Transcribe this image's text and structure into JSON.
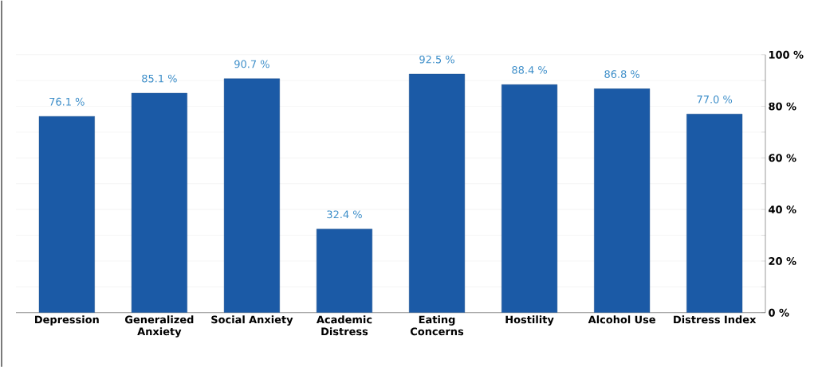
{
  "chart_data": {
    "type": "bar",
    "categories": [
      "Depression",
      "Generalized Anxiety",
      "Social Anxiety",
      "Academic Distress",
      "Eating Concerns",
      "Hostility",
      "Alcohol Use",
      "Distress Index"
    ],
    "values": [
      76.1,
      85.1,
      90.7,
      32.4,
      92.5,
      88.4,
      86.8,
      77.0
    ],
    "value_labels": [
      "76.1 %",
      "85.1 %",
      "90.7 %",
      "32.4 %",
      "92.5 %",
      "88.4 %",
      "86.8 %",
      "77.0 %"
    ],
    "color": "#1b5aa6",
    "ylim": [
      0,
      100
    ],
    "yticks": [
      {
        "value": 0,
        "label": "0 %"
      },
      {
        "value": 10,
        "label": null
      },
      {
        "value": 20,
        "label": "20 %"
      },
      {
        "value": 30,
        "label": null
      },
      {
        "value": 40,
        "label": "40 %"
      },
      {
        "value": 50,
        "label": null
      },
      {
        "value": 60,
        "label": "60 %"
      },
      {
        "value": 70,
        "label": null
      },
      {
        "value": 80,
        "label": "80 %"
      },
      {
        "value": 90,
        "label": null
      },
      {
        "value": 100,
        "label": "100 %"
      }
    ],
    "grid": "y"
  }
}
